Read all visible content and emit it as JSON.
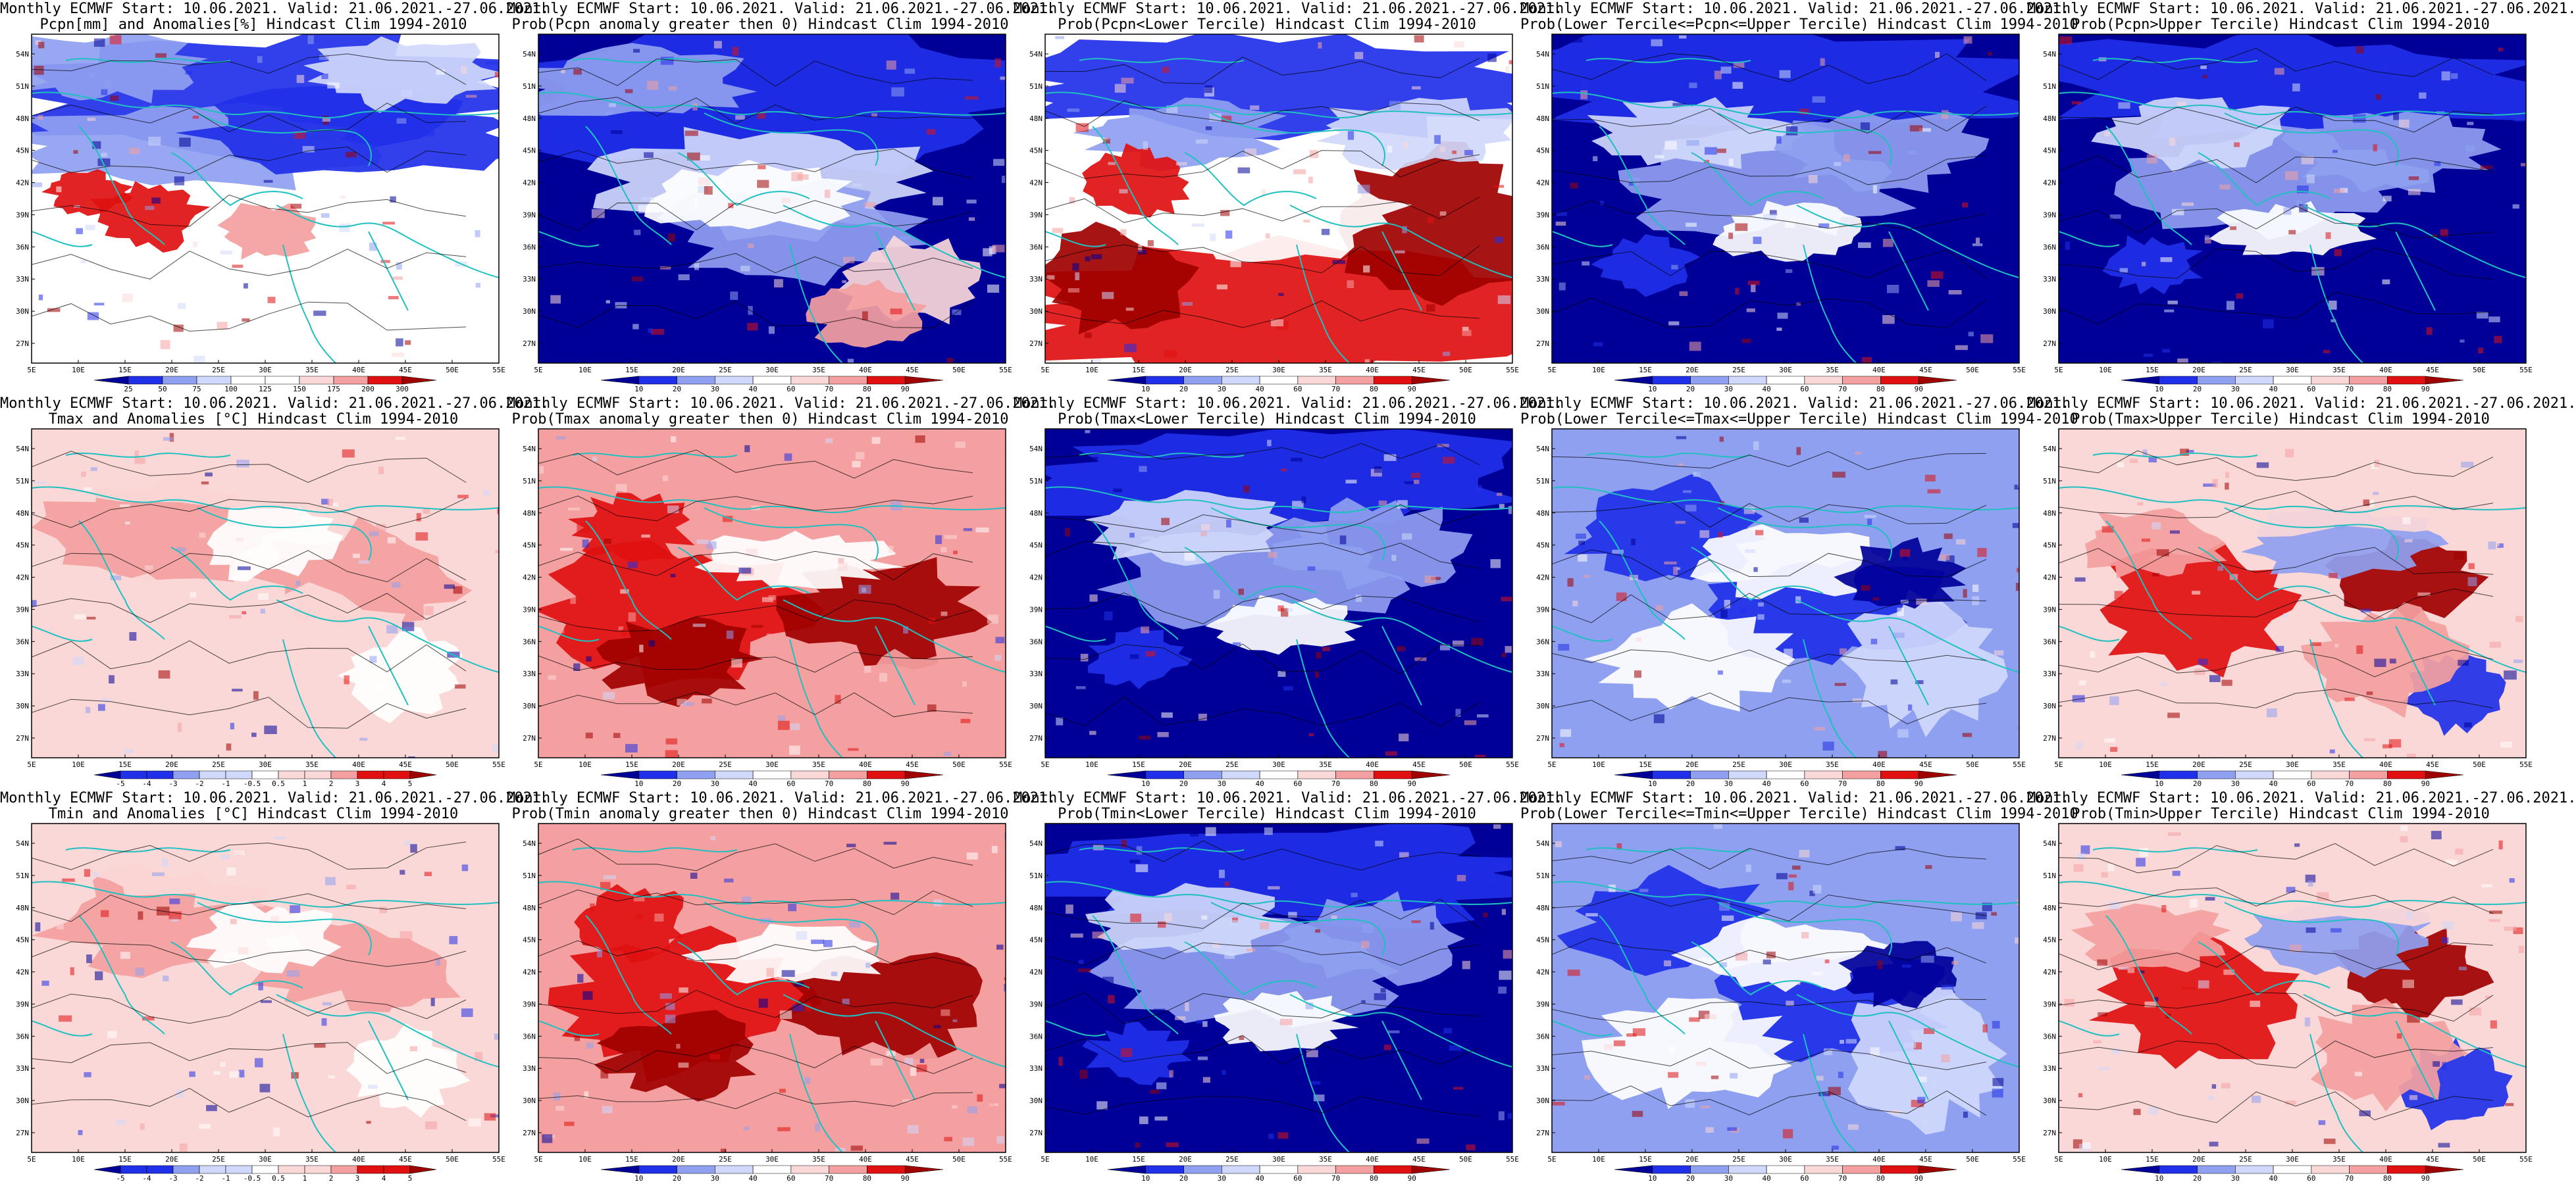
{
  "figure": {
    "rows": 3,
    "cols": 5,
    "lat_ticks": [
      "27N",
      "30N",
      "33N",
      "36N",
      "39N",
      "42N",
      "45N",
      "48N",
      "51N",
      "54N"
    ],
    "lon_ticks": [
      "5E",
      "10E",
      "15E",
      "20E",
      "25E",
      "30E",
      "35E",
      "40E",
      "45E",
      "50E",
      "55E"
    ],
    "colors": {
      "deep_red": "#a00000",
      "red": "#e01010",
      "light_red": "#f4a0a0",
      "pale_red": "#fbd8d8",
      "white": "#ffffff",
      "pale_blue": "#d0d8fb",
      "light_blue": "#8fa0f0",
      "blue": "#2030e8",
      "deep_blue": "#000099",
      "coast": "#20c0c0",
      "contour": "#000000"
    }
  },
  "panels": [
    {
      "title1": "Monthly ECMWF Start: 10.06.2021. Valid: 21.06.2021.-27.06.2021.",
      "title2": "Pcpn[mm] and Anomalies[%]  Hindcast Clim 1994-2010",
      "palette": "precip_anom",
      "colorbar": [
        "25",
        "50",
        "75",
        "100",
        "125",
        "150",
        "175",
        "200",
        "300"
      ]
    },
    {
      "title1": "Monthly ECMWF Start: 10.06.2021. Valid: 21.06.2021.-27.06.2021.",
      "title2": "Prob(Pcpn anomaly greater then 0)  Hindcast Clim 1994-2010",
      "palette": "prob_blue",
      "colorbar": [
        "10",
        "20",
        "30",
        "40",
        "60",
        "70",
        "80",
        "90"
      ]
    },
    {
      "title1": "Monthly ECMWF Start: 10.06.2021. Valid: 21.06.2021.-27.06.2021.",
      "title2": "Prob(Pcpn<Lower Tercile)  Hindcast Clim 1994-2010",
      "palette": "prob_red_south",
      "colorbar": [
        "10",
        "20",
        "30",
        "40",
        "60",
        "70",
        "80",
        "90"
      ]
    },
    {
      "title1": "Monthly ECMWF Start: 10.06.2021. Valid: 21.06.2021.-27.06.2021.",
      "title2": "Prob(Lower Tercile<=Pcpn<=Upper Tercile)  Hindcast Clim 1994-2010",
      "palette": "prob_blue_deep",
      "colorbar": [
        "10",
        "20",
        "30",
        "40",
        "60",
        "70",
        "80",
        "90"
      ]
    },
    {
      "title1": "Monthly ECMWF Start: 10.06.2021. Valid: 21.06.2021.-27.06.2021.",
      "title2": "Prob(Pcpn>Upper Tercile)  Hindcast Clim 1994-2010",
      "palette": "prob_blue_deep",
      "colorbar": [
        "10",
        "20",
        "30",
        "40",
        "60",
        "70",
        "80",
        "90"
      ]
    },
    {
      "title1": "Monthly ECMWF Start: 10.06.2021. Valid: 21.06.2021.-27.06.2021.",
      "title2": "Tmax and Anomalies [°C]  Hindcast Clim 1994-2010",
      "palette": "temp_anom",
      "colorbar": [
        "-5",
        "-4",
        "-3",
        "-2",
        "-1",
        "-0.5",
        "0.5",
        "1",
        "2",
        "3",
        "4",
        "5"
      ]
    },
    {
      "title1": "Monthly ECMWF Start: 10.06.2021. Valid: 21.06.2021.-27.06.2021.",
      "title2": "Prob(Tmax anomaly greater then 0)  Hindcast Clim 1994-2010",
      "palette": "prob_red",
      "colorbar": [
        "10",
        "20",
        "30",
        "40",
        "60",
        "70",
        "80",
        "90"
      ]
    },
    {
      "title1": "Monthly ECMWF Start: 10.06.2021. Valid: 21.06.2021.-27.06.2021.",
      "title2": "Prob(Tmax<Lower Tercile)  Hindcast Clim 1994-2010",
      "palette": "prob_blue_deep",
      "colorbar": [
        "10",
        "20",
        "30",
        "40",
        "60",
        "70",
        "80",
        "90"
      ]
    },
    {
      "title1": "Monthly ECMWF Start: 10.06.2021. Valid: 21.06.2021.-27.06.2021.",
      "title2": "Prob(Lower Tercile<=Tmax<=Upper Tercile)  Hindcast Clim 1994-2010",
      "palette": "prob_blue_mix",
      "colorbar": [
        "10",
        "20",
        "30",
        "40",
        "60",
        "70",
        "80",
        "90"
      ]
    },
    {
      "title1": "Monthly ECMWF Start: 10.06.2021. Valid: 21.06.2021.-27.06.2021.",
      "title2": "Prob(Tmax>Upper Tercile)  Hindcast Clim 1994-2010",
      "palette": "prob_red_mix",
      "colorbar": [
        "10",
        "20",
        "30",
        "40",
        "60",
        "70",
        "80",
        "90"
      ]
    },
    {
      "title1": "Monthly ECMWF Start: 10.06.2021. Valid: 21.06.2021.-27.06.2021.",
      "title2": "Tmin and Anomalies [°C]  Hindcast Clim 1994-2010",
      "palette": "temp_anom",
      "colorbar": [
        "-5",
        "-4",
        "-3",
        "-2",
        "-1",
        "-0.5",
        "0.5",
        "1",
        "2",
        "3",
        "4",
        "5"
      ]
    },
    {
      "title1": "Monthly ECMWF Start: 10.06.2021. Valid: 21.06.2021.-27.06.2021.",
      "title2": "Prob(Tmin anomaly greater then 0)  Hindcast Clim 1994-2010",
      "palette": "prob_red",
      "colorbar": [
        "10",
        "20",
        "30",
        "40",
        "60",
        "70",
        "80",
        "90"
      ]
    },
    {
      "title1": "Monthly ECMWF Start: 10.06.2021. Valid: 21.06.2021.-27.06.2021.",
      "title2": "Prob(Tmin<Lower Tercile)  Hindcast Clim 1994-2010",
      "palette": "prob_blue_deep",
      "colorbar": [
        "10",
        "20",
        "30",
        "40",
        "60",
        "70",
        "80",
        "90"
      ]
    },
    {
      "title1": "Monthly ECMWF Start: 10.06.2021. Valid: 21.06.2021.-27.06.2021.",
      "title2": "Prob(Lower Tercile<=Tmin<=Upper Tercile)  Hindcast Clim 1994-2010",
      "palette": "prob_blue_mix",
      "colorbar": [
        "10",
        "20",
        "30",
        "40",
        "60",
        "70",
        "80",
        "90"
      ]
    },
    {
      "title1": "Monthly ECMWF Start: 10.06.2021. Valid: 21.06.2021.-27.06.2021.",
      "title2": "Prob(Tmin>Upper Tercile)  Hindcast Clim 1994-2010",
      "palette": "prob_red_mix",
      "colorbar": [
        "10",
        "20",
        "30",
        "40",
        "60",
        "70",
        "80",
        "90"
      ]
    }
  ]
}
